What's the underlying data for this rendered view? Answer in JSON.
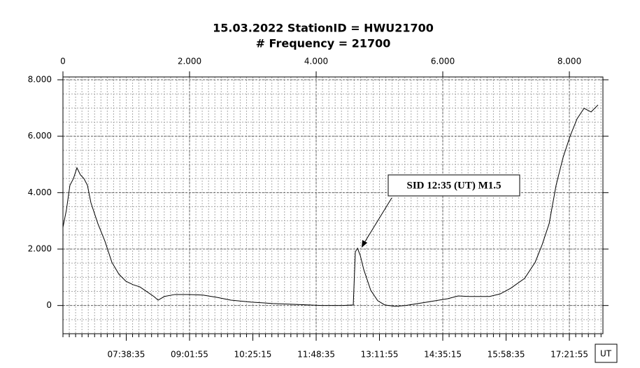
{
  "chart_data": {
    "type": "line",
    "title": "15.03.2022 StationID = HWU21700",
    "subtitle": "# Frequency = 21700",
    "annotation": "SID 12:35 (UT) M1.5",
    "x2_label": "UT",
    "x": [
      0,
      55,
      110,
      166,
      221,
      276,
      331,
      387,
      442,
      552,
      663,
      773,
      884,
      994,
      1105,
      1215,
      1326,
      1436,
      1503,
      1602,
      1768,
      1989,
      2210,
      2431,
      2652,
      2983,
      3315,
      3646,
      4088,
      4420,
      4586,
      4619,
      4652,
      4696,
      4751,
      4862,
      4972,
      5083,
      5249,
      5414,
      5746,
      6077,
      6243,
      6409,
      6740,
      6906,
      7072,
      7293,
      7459,
      7569,
      7680,
      7790,
      7901,
      8011,
      8122,
      8232,
      8343,
      8453
    ],
    "series": [
      {
        "color": "#000000",
        "values": [
          2770,
          3390,
          4260,
          4500,
          4880,
          4630,
          4500,
          4260,
          3640,
          2900,
          2280,
          1530,
          1110,
          860,
          740,
          660,
          490,
          320,
          190,
          320,
          390,
          390,
          370,
          290,
          190,
          120,
          70,
          40,
          0,
          0,
          20,
          1900,
          2030,
          1780,
          1280,
          540,
          170,
          20,
          -30,
          0,
          120,
          240,
          340,
          320,
          320,
          410,
          610,
          960,
          1530,
          2150,
          2900,
          4260,
          5250,
          6000,
          6620,
          6990,
          6860,
          7110
        ]
      }
    ],
    "xlim": [
      0,
      8530
    ],
    "ylim": [
      -1000,
      8100
    ],
    "xticks": [
      {
        "value": 0,
        "label": "0"
      },
      {
        "value": 2000,
        "label": "2.000"
      },
      {
        "value": 4000,
        "label": "4.000"
      },
      {
        "value": 6000,
        "label": "6.000"
      },
      {
        "value": 8000,
        "label": "8.000"
      }
    ],
    "x2ticks": [
      {
        "value": 1000,
        "label": "07:38:35"
      },
      {
        "value": 2000,
        "label": "09:01:55"
      },
      {
        "value": 3000,
        "label": "10:25:15"
      },
      {
        "value": 4000,
        "label": "11:48:35"
      },
      {
        "value": 5000,
        "label": "13:11:55"
      },
      {
        "value": 6000,
        "label": "14:35:15"
      },
      {
        "value": 7000,
        "label": "15:58:35"
      },
      {
        "value": 8000,
        "label": "17:21:55"
      }
    ],
    "yticks": [
      0,
      {
        "value": 2000,
        "label": "2.000"
      },
      {
        "value": 4000,
        "label": "4.000"
      },
      {
        "value": 6000,
        "label": "6.000"
      },
      {
        "value": 8000,
        "label": "8.000"
      }
    ],
    "grid": true
  }
}
